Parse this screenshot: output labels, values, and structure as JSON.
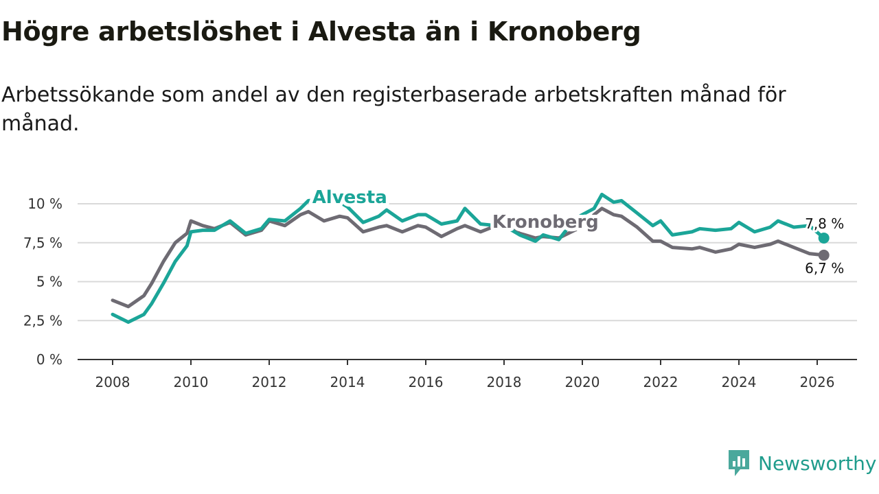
{
  "title": "Högre arbetslöshet i Alvesta än i Kronoberg",
  "subtitle": "Arbetssökande som andel av den registerbaserade arbetskraften månad för månad.",
  "brand": {
    "name": "Newsworthy",
    "icon": "newsworthy-logo-icon",
    "color": "#4aa89c"
  },
  "chart_data": {
    "type": "line",
    "title": "Högre arbetslöshet i Alvesta än i Kronoberg",
    "xlabel": "",
    "ylabel": "",
    "xlim": [
      2007.2,
      2027.0
    ],
    "ylim": [
      0,
      10
    ],
    "grid": "horizontal",
    "y_ticks": [
      {
        "value": 0,
        "label": "0 %"
      },
      {
        "value": 2.5,
        "label": "2,5 %"
      },
      {
        "value": 5,
        "label": "5 %"
      },
      {
        "value": 7.5,
        "label": "7,5 %"
      },
      {
        "value": 10,
        "label": "10 %"
      }
    ],
    "x_ticks": [
      {
        "value": 2008,
        "label": "2008"
      },
      {
        "value": 2010,
        "label": "2010"
      },
      {
        "value": 2012,
        "label": "2012"
      },
      {
        "value": 2014,
        "label": "2014"
      },
      {
        "value": 2016,
        "label": "2016"
      },
      {
        "value": 2018,
        "label": "2018"
      },
      {
        "value": 2020,
        "label": "2020"
      },
      {
        "value": 2022,
        "label": "2022"
      },
      {
        "value": 2024,
        "label": "2024"
      },
      {
        "value": 2026,
        "label": "2026"
      }
    ],
    "series": [
      {
        "name": "Kronoberg",
        "color": "#6e6b73",
        "label": "Kronoberg",
        "end_label": "6,7 %",
        "points": [
          [
            2008.0,
            3.8
          ],
          [
            2008.4,
            3.4
          ],
          [
            2008.8,
            4.1
          ],
          [
            2009.0,
            4.9
          ],
          [
            2009.3,
            6.3
          ],
          [
            2009.6,
            7.5
          ],
          [
            2009.9,
            8.1
          ],
          [
            2010.0,
            8.9
          ],
          [
            2010.3,
            8.6
          ],
          [
            2010.6,
            8.4
          ],
          [
            2011.0,
            8.8
          ],
          [
            2011.4,
            8.0
          ],
          [
            2011.8,
            8.3
          ],
          [
            2012.0,
            8.9
          ],
          [
            2012.4,
            8.6
          ],
          [
            2012.8,
            9.3
          ],
          [
            2013.0,
            9.5
          ],
          [
            2013.4,
            8.9
          ],
          [
            2013.8,
            9.2
          ],
          [
            2014.0,
            9.1
          ],
          [
            2014.4,
            8.2
          ],
          [
            2014.8,
            8.5
          ],
          [
            2015.0,
            8.6
          ],
          [
            2015.4,
            8.2
          ],
          [
            2015.8,
            8.6
          ],
          [
            2016.0,
            8.5
          ],
          [
            2016.4,
            7.9
          ],
          [
            2016.8,
            8.4
          ],
          [
            2017.0,
            8.6
          ],
          [
            2017.4,
            8.2
          ],
          [
            2017.8,
            8.6
          ],
          [
            2018.0,
            8.6
          ],
          [
            2018.4,
            8.1
          ],
          [
            2018.8,
            7.8
          ],
          [
            2019.0,
            7.9
          ],
          [
            2019.4,
            7.8
          ],
          [
            2019.8,
            8.3
          ],
          [
            2020.0,
            8.5
          ],
          [
            2020.3,
            9.3
          ],
          [
            2020.5,
            9.7
          ],
          [
            2020.8,
            9.3
          ],
          [
            2021.0,
            9.2
          ],
          [
            2021.4,
            8.5
          ],
          [
            2021.8,
            7.6
          ],
          [
            2022.0,
            7.6
          ],
          [
            2022.3,
            7.2
          ],
          [
            2022.8,
            7.1
          ],
          [
            2023.0,
            7.2
          ],
          [
            2023.4,
            6.9
          ],
          [
            2023.8,
            7.1
          ],
          [
            2024.0,
            7.4
          ],
          [
            2024.4,
            7.2
          ],
          [
            2024.8,
            7.4
          ],
          [
            2025.0,
            7.6
          ],
          [
            2025.4,
            7.2
          ],
          [
            2025.8,
            6.8
          ],
          [
            2026.17,
            6.7
          ]
        ]
      },
      {
        "name": "Alvesta",
        "color": "#1ba598",
        "label": "Alvesta",
        "end_label": "7,8 %",
        "points": [
          [
            2008.0,
            2.9
          ],
          [
            2008.4,
            2.4
          ],
          [
            2008.8,
            2.9
          ],
          [
            2009.0,
            3.6
          ],
          [
            2009.3,
            4.9
          ],
          [
            2009.6,
            6.3
          ],
          [
            2009.9,
            7.3
          ],
          [
            2010.0,
            8.2
          ],
          [
            2010.3,
            8.3
          ],
          [
            2010.6,
            8.3
          ],
          [
            2011.0,
            8.9
          ],
          [
            2011.4,
            8.1
          ],
          [
            2011.8,
            8.4
          ],
          [
            2012.0,
            9.0
          ],
          [
            2012.4,
            8.9
          ],
          [
            2012.8,
            9.7
          ],
          [
            2013.0,
            10.2
          ],
          [
            2013.4,
            10.3
          ],
          [
            2013.8,
            10.1
          ],
          [
            2014.0,
            9.8
          ],
          [
            2014.4,
            8.8
          ],
          [
            2014.8,
            9.2
          ],
          [
            2015.0,
            9.6
          ],
          [
            2015.4,
            8.9
          ],
          [
            2015.8,
            9.3
          ],
          [
            2016.0,
            9.3
          ],
          [
            2016.4,
            8.7
          ],
          [
            2016.8,
            8.9
          ],
          [
            2017.0,
            9.7
          ],
          [
            2017.4,
            8.7
          ],
          [
            2017.8,
            8.6
          ],
          [
            2018.0,
            8.6
          ],
          [
            2018.4,
            8.0
          ],
          [
            2018.8,
            7.6
          ],
          [
            2019.0,
            8.0
          ],
          [
            2019.4,
            7.7
          ],
          [
            2019.8,
            9.0
          ],
          [
            2020.0,
            9.3
          ],
          [
            2020.3,
            9.7
          ],
          [
            2020.5,
            10.6
          ],
          [
            2020.8,
            10.1
          ],
          [
            2021.0,
            10.2
          ],
          [
            2021.4,
            9.4
          ],
          [
            2021.8,
            8.6
          ],
          [
            2022.0,
            8.9
          ],
          [
            2022.3,
            8.0
          ],
          [
            2022.8,
            8.2
          ],
          [
            2023.0,
            8.4
          ],
          [
            2023.4,
            8.3
          ],
          [
            2023.8,
            8.4
          ],
          [
            2024.0,
            8.8
          ],
          [
            2024.4,
            8.2
          ],
          [
            2024.8,
            8.5
          ],
          [
            2025.0,
            8.9
          ],
          [
            2025.4,
            8.5
          ],
          [
            2025.8,
            8.6
          ],
          [
            2026.17,
            7.8
          ]
        ]
      }
    ]
  }
}
